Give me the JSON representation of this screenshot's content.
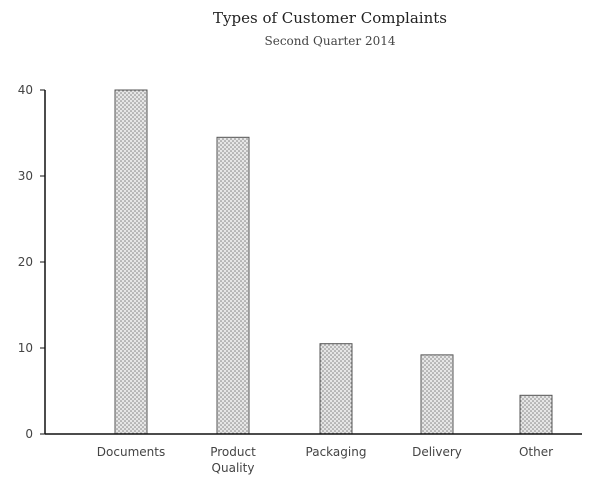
{
  "chart_data": {
    "type": "bar",
    "title": "Types of Customer Complaints",
    "subtitle": "Second Quarter 2014",
    "categories": [
      "Documents",
      "Product Quality",
      "Packaging",
      "Delivery",
      "Other"
    ],
    "category_lines": [
      [
        "Documents"
      ],
      [
        "Product",
        "Quality"
      ],
      [
        "Packaging"
      ],
      [
        "Delivery"
      ],
      [
        "Other"
      ]
    ],
    "values": [
      40,
      34.5,
      10.5,
      9.2,
      4.5
    ],
    "xlabel": "",
    "ylabel": "",
    "ylim": [
      0,
      40
    ],
    "yticks": [
      0,
      10,
      20,
      30,
      40
    ],
    "grid": false,
    "bar_fill": "#e6e6e6",
    "bar_pattern_color": "#7a7a7a",
    "axis_color": "#111111"
  }
}
